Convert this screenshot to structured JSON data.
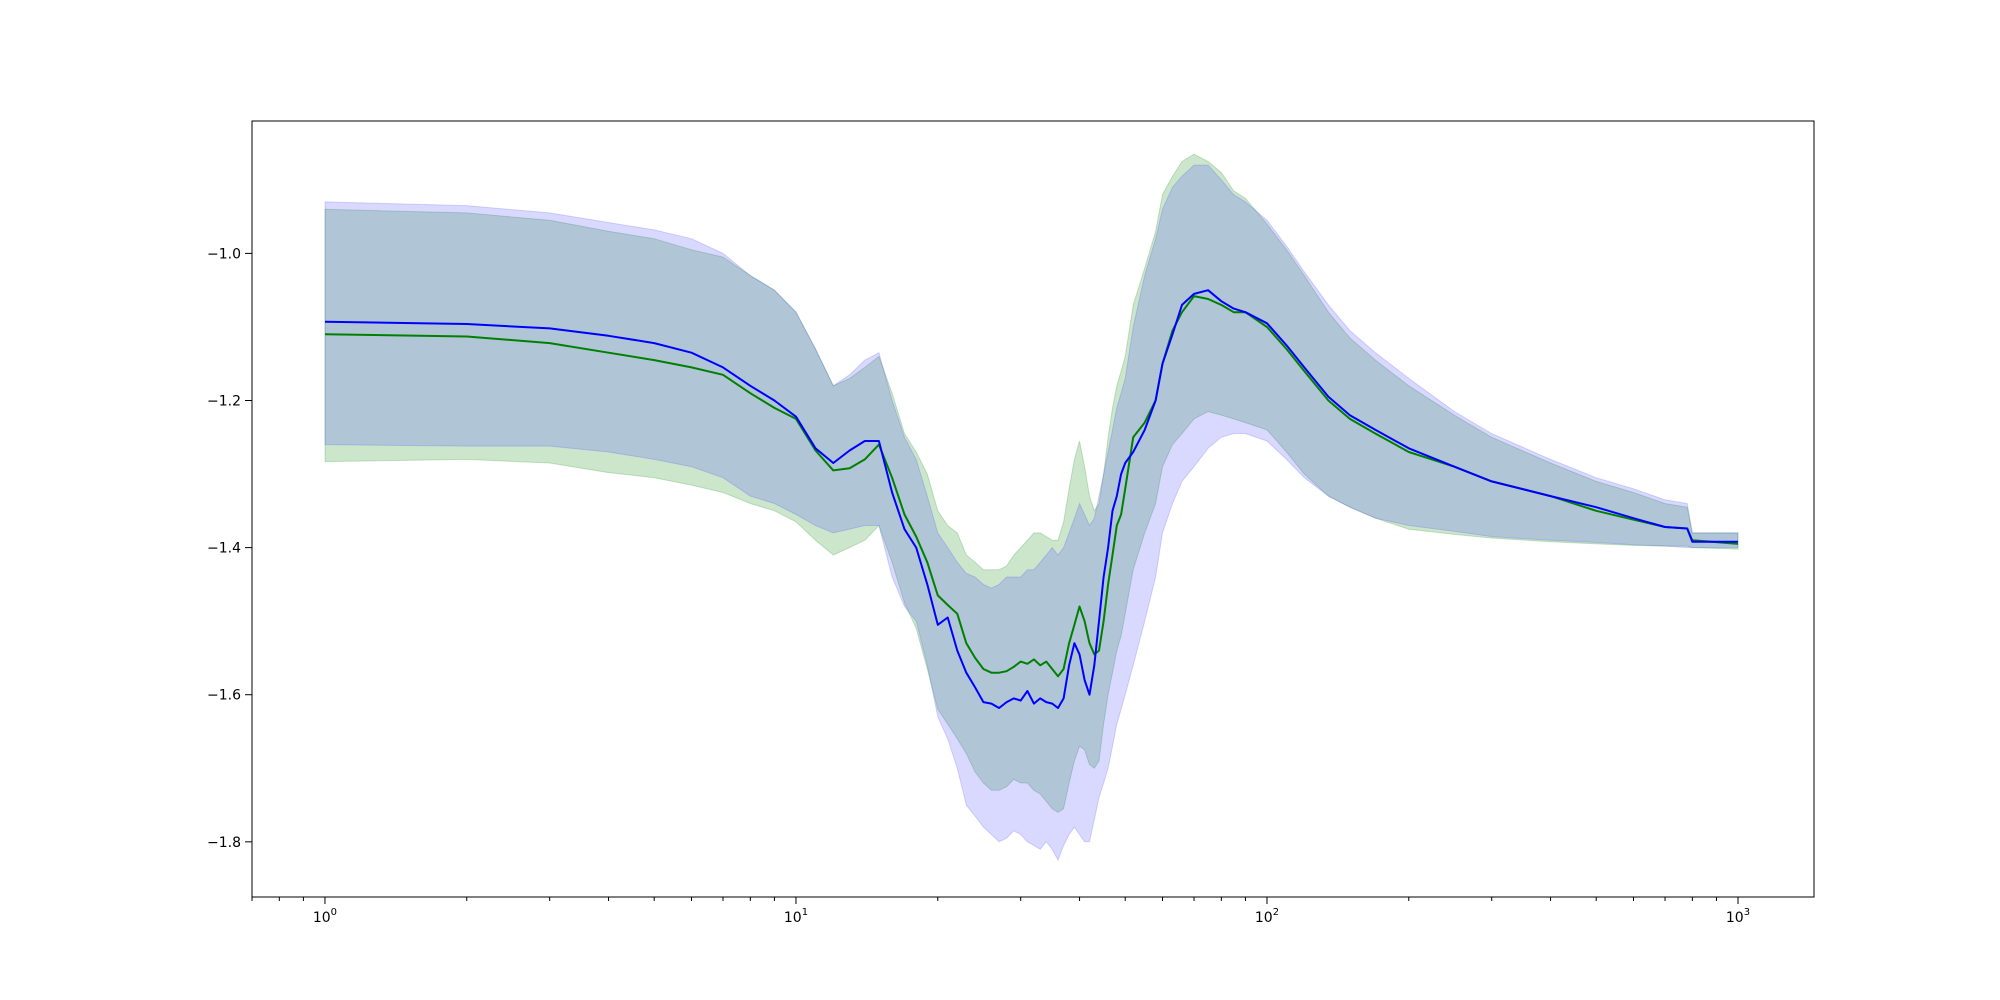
{
  "chart_data": {
    "type": "line",
    "title": "",
    "xlabel": "",
    "ylabel": "",
    "xscale": "log",
    "xlim": [
      0.7,
      1450
    ],
    "ylim": [
      -1.875,
      -0.82
    ],
    "grid": false,
    "legend": "none",
    "x_ticks": [
      {
        "value": 1,
        "base": "10",
        "exp": "0"
      },
      {
        "value": 10,
        "base": "10",
        "exp": "1"
      },
      {
        "value": 100,
        "base": "10",
        "exp": "2"
      },
      {
        "value": 1000,
        "base": "10",
        "exp": "3"
      }
    ],
    "y_ticks": [
      {
        "value": -1.0,
        "label": "−1.0"
      },
      {
        "value": -1.2,
        "label": "−1.2"
      },
      {
        "value": -1.4,
        "label": "−1.4"
      },
      {
        "value": -1.6,
        "label": "−1.6"
      },
      {
        "value": -1.8,
        "label": "−1.8"
      }
    ],
    "series": [
      {
        "color": "#008000",
        "band_color": "#008000",
        "x": [
          1,
          2,
          3,
          4,
          5,
          6,
          7,
          8,
          9,
          10,
          11,
          12,
          13,
          14,
          15,
          16,
          17,
          18,
          19,
          20,
          21,
          22,
          23,
          24,
          25,
          26,
          27,
          28,
          29,
          30,
          31,
          32,
          33,
          34,
          35,
          36,
          37,
          38,
          39,
          40,
          41,
          42,
          43,
          44,
          45,
          46,
          47,
          48,
          49,
          50,
          52,
          55,
          58,
          60,
          63,
          66,
          70,
          75,
          80,
          85,
          90,
          100,
          110,
          120,
          135,
          150,
          170,
          200,
          250,
          300,
          400,
          500,
          600,
          700,
          780,
          800,
          1000
        ],
        "y": [
          -1.11,
          -1.113,
          -1.122,
          -1.135,
          -1.145,
          -1.155,
          -1.165,
          -1.19,
          -1.21,
          -1.225,
          -1.268,
          -1.295,
          -1.292,
          -1.28,
          -1.26,
          -1.305,
          -1.355,
          -1.385,
          -1.42,
          -1.465,
          -1.478,
          -1.49,
          -1.53,
          -1.55,
          -1.565,
          -1.57,
          -1.57,
          -1.568,
          -1.562,
          -1.555,
          -1.558,
          -1.552,
          -1.56,
          -1.555,
          -1.565,
          -1.575,
          -1.565,
          -1.53,
          -1.505,
          -1.48,
          -1.5,
          -1.53,
          -1.545,
          -1.54,
          -1.5,
          -1.45,
          -1.41,
          -1.37,
          -1.355,
          -1.32,
          -1.25,
          -1.23,
          -1.2,
          -1.15,
          -1.105,
          -1.08,
          -1.058,
          -1.062,
          -1.07,
          -1.08,
          -1.08,
          -1.1,
          -1.13,
          -1.16,
          -1.2,
          -1.225,
          -1.245,
          -1.27,
          -1.29,
          -1.31,
          -1.33,
          -1.35,
          -1.362,
          -1.372,
          -1.374,
          -1.39,
          -1.395
        ],
        "lower": [
          -1.283,
          -1.28,
          -1.285,
          -1.298,
          -1.305,
          -1.315,
          -1.325,
          -1.34,
          -1.35,
          -1.365,
          -1.39,
          -1.41,
          -1.4,
          -1.39,
          -1.37,
          -1.42,
          -1.475,
          -1.51,
          -1.565,
          -1.62,
          -1.64,
          -1.66,
          -1.68,
          -1.705,
          -1.72,
          -1.73,
          -1.73,
          -1.725,
          -1.715,
          -1.72,
          -1.72,
          -1.73,
          -1.735,
          -1.745,
          -1.755,
          -1.76,
          -1.755,
          -1.72,
          -1.69,
          -1.67,
          -1.675,
          -1.695,
          -1.7,
          -1.69,
          -1.64,
          -1.6,
          -1.57,
          -1.54,
          -1.52,
          -1.49,
          -1.43,
          -1.38,
          -1.34,
          -1.29,
          -1.26,
          -1.245,
          -1.225,
          -1.215,
          -1.22,
          -1.225,
          -1.23,
          -1.24,
          -1.27,
          -1.3,
          -1.33,
          -1.345,
          -1.36,
          -1.375,
          -1.382,
          -1.387,
          -1.392,
          -1.395,
          -1.397,
          -1.398,
          -1.398,
          -1.4,
          -1.402
        ],
        "upper": [
          -0.94,
          -0.945,
          -0.955,
          -0.97,
          -0.98,
          -0.995,
          -1.005,
          -1.03,
          -1.05,
          -1.08,
          -1.13,
          -1.18,
          -1.17,
          -1.155,
          -1.14,
          -1.19,
          -1.245,
          -1.27,
          -1.3,
          -1.35,
          -1.37,
          -1.38,
          -1.41,
          -1.42,
          -1.43,
          -1.43,
          -1.43,
          -1.425,
          -1.41,
          -1.4,
          -1.39,
          -1.38,
          -1.38,
          -1.385,
          -1.39,
          -1.39,
          -1.365,
          -1.32,
          -1.28,
          -1.255,
          -1.29,
          -1.33,
          -1.35,
          -1.34,
          -1.3,
          -1.25,
          -1.21,
          -1.18,
          -1.16,
          -1.14,
          -1.07,
          -1.02,
          -0.97,
          -0.92,
          -0.895,
          -0.875,
          -0.865,
          -0.875,
          -0.89,
          -0.915,
          -0.925,
          -0.96,
          -0.995,
          -1.03,
          -1.08,
          -1.115,
          -1.145,
          -1.18,
          -1.22,
          -1.25,
          -1.285,
          -1.31,
          -1.325,
          -1.34,
          -1.345,
          -1.38,
          -1.38
        ]
      },
      {
        "color": "#0000ff",
        "band_color": "#4040ff",
        "x": [
          1,
          2,
          3,
          4,
          5,
          6,
          7,
          8,
          9,
          10,
          11,
          12,
          13,
          14,
          15,
          16,
          17,
          18,
          19,
          20,
          21,
          22,
          23,
          24,
          25,
          26,
          27,
          28,
          29,
          30,
          31,
          32,
          33,
          34,
          35,
          36,
          37,
          38,
          39,
          40,
          41,
          42,
          43,
          44,
          45,
          46,
          47,
          48,
          49,
          50,
          52,
          55,
          58,
          60,
          63,
          66,
          70,
          75,
          80,
          85,
          90,
          100,
          110,
          120,
          135,
          150,
          170,
          200,
          250,
          300,
          400,
          500,
          600,
          700,
          780,
          800,
          1000
        ],
        "y": [
          -1.093,
          -1.096,
          -1.102,
          -1.112,
          -1.122,
          -1.135,
          -1.155,
          -1.18,
          -1.2,
          -1.222,
          -1.265,
          -1.285,
          -1.268,
          -1.255,
          -1.255,
          -1.325,
          -1.375,
          -1.4,
          -1.45,
          -1.505,
          -1.495,
          -1.54,
          -1.57,
          -1.59,
          -1.61,
          -1.612,
          -1.618,
          -1.61,
          -1.605,
          -1.608,
          -1.595,
          -1.612,
          -1.605,
          -1.61,
          -1.612,
          -1.618,
          -1.605,
          -1.56,
          -1.53,
          -1.545,
          -1.58,
          -1.6,
          -1.56,
          -1.5,
          -1.44,
          -1.4,
          -1.35,
          -1.33,
          -1.3,
          -1.285,
          -1.27,
          -1.24,
          -1.2,
          -1.15,
          -1.11,
          -1.07,
          -1.055,
          -1.05,
          -1.065,
          -1.075,
          -1.08,
          -1.095,
          -1.125,
          -1.155,
          -1.195,
          -1.22,
          -1.24,
          -1.265,
          -1.29,
          -1.31,
          -1.33,
          -1.345,
          -1.36,
          -1.372,
          -1.374,
          -1.392,
          -1.392
        ],
        "lower": [
          -1.26,
          -1.262,
          -1.262,
          -1.27,
          -1.28,
          -1.29,
          -1.305,
          -1.33,
          -1.34,
          -1.355,
          -1.37,
          -1.38,
          -1.375,
          -1.37,
          -1.37,
          -1.44,
          -1.48,
          -1.5,
          -1.56,
          -1.63,
          -1.66,
          -1.7,
          -1.75,
          -1.765,
          -1.78,
          -1.79,
          -1.8,
          -1.795,
          -1.785,
          -1.79,
          -1.8,
          -1.805,
          -1.81,
          -1.8,
          -1.81,
          -1.825,
          -1.805,
          -1.79,
          -1.78,
          -1.79,
          -1.8,
          -1.8,
          -1.77,
          -1.74,
          -1.72,
          -1.7,
          -1.67,
          -1.64,
          -1.62,
          -1.6,
          -1.56,
          -1.5,
          -1.44,
          -1.38,
          -1.34,
          -1.31,
          -1.29,
          -1.265,
          -1.25,
          -1.245,
          -1.245,
          -1.255,
          -1.28,
          -1.305,
          -1.33,
          -1.345,
          -1.36,
          -1.37,
          -1.378,
          -1.385,
          -1.39,
          -1.393,
          -1.396,
          -1.398,
          -1.4,
          -1.4,
          -1.4
        ],
        "upper": [
          -0.93,
          -0.935,
          -0.945,
          -0.958,
          -0.968,
          -0.98,
          -1.0,
          -1.03,
          -1.05,
          -1.08,
          -1.13,
          -1.18,
          -1.165,
          -1.145,
          -1.135,
          -1.2,
          -1.25,
          -1.28,
          -1.33,
          -1.38,
          -1.4,
          -1.42,
          -1.435,
          -1.44,
          -1.45,
          -1.455,
          -1.45,
          -1.44,
          -1.44,
          -1.44,
          -1.43,
          -1.43,
          -1.42,
          -1.41,
          -1.4,
          -1.41,
          -1.4,
          -1.38,
          -1.36,
          -1.34,
          -1.355,
          -1.37,
          -1.36,
          -1.33,
          -1.3,
          -1.27,
          -1.24,
          -1.21,
          -1.19,
          -1.17,
          -1.1,
          -1.03,
          -0.98,
          -0.94,
          -0.91,
          -0.895,
          -0.88,
          -0.88,
          -0.9,
          -0.92,
          -0.93,
          -0.955,
          -0.99,
          -1.025,
          -1.07,
          -1.105,
          -1.135,
          -1.17,
          -1.215,
          -1.245,
          -1.28,
          -1.305,
          -1.32,
          -1.335,
          -1.34,
          -1.38,
          -1.38
        ]
      }
    ]
  }
}
